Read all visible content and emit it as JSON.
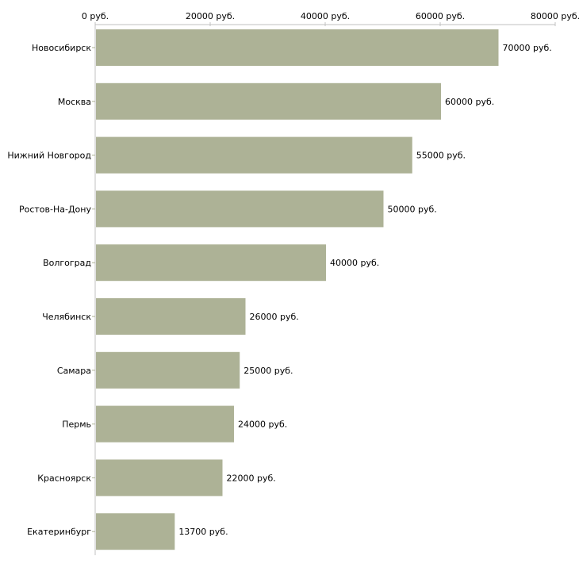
{
  "chart_data": {
    "type": "bar",
    "orientation": "horizontal",
    "title": "",
    "xlabel": "",
    "ylabel": "",
    "xlim": [
      0,
      80000
    ],
    "x_ticks": [
      0,
      20000,
      40000,
      60000,
      80000
    ],
    "x_tick_labels": [
      "0 руб.",
      "20000 руб.",
      "40000 руб.",
      "60000 руб.",
      "80000 руб."
    ],
    "categories": [
      "Новосибирск",
      "Москва",
      "Нижний Новгород",
      "Ростов-На-Дону",
      "Волгоград",
      "Челябинск",
      "Самара",
      "Пермь",
      "Красноярск",
      "Екатеринбург"
    ],
    "values": [
      70000,
      60000,
      55000,
      50000,
      40000,
      26000,
      25000,
      24000,
      22000,
      13700
    ],
    "value_labels": [
      "70000 руб.",
      "60000 руб.",
      "55000 руб.",
      "50000 руб.",
      "40000 руб.",
      "26000 руб.",
      "25000 руб.",
      "24000 руб.",
      "22000 руб.",
      "13700 руб."
    ],
    "bar_color": "#adb296",
    "axis_color": "#c0c0c0",
    "grid": false
  }
}
